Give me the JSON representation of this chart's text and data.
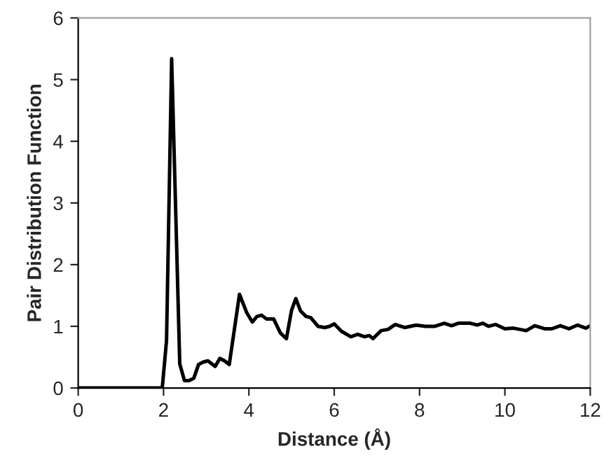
{
  "chart_data": {
    "type": "line",
    "xlabel": "Distance (Å)",
    "ylabel": "Pair Distribution Function",
    "xlim": [
      0,
      12
    ],
    "xticks": [
      0,
      2,
      4,
      6,
      8,
      10,
      12
    ],
    "ylim": [
      0,
      6
    ],
    "yticks": [
      0,
      1,
      2,
      3,
      4,
      5,
      6
    ],
    "grid": false,
    "marker": "none",
    "line_style": "solid",
    "series": [
      {
        "color": "#000000",
        "x": [
          0,
          1.97,
          2.07,
          2.19,
          2.38,
          2.49,
          2.6,
          2.71,
          2.82,
          2.93,
          3.04,
          3.21,
          3.32,
          3.43,
          3.54,
          3.78,
          3.95,
          4.08,
          4.19,
          4.3,
          4.41,
          4.58,
          4.74,
          4.88,
          5.0,
          5.1,
          5.21,
          5.34,
          5.45,
          5.62,
          5.78,
          5.89,
          6.0,
          6.17,
          6.39,
          6.55,
          6.71,
          6.82,
          6.91,
          7.1,
          7.26,
          7.43,
          7.65,
          7.92,
          8.14,
          8.36,
          8.58,
          8.75,
          8.91,
          9.19,
          9.35,
          9.48,
          9.62,
          9.78,
          10.0,
          10.2,
          10.5,
          10.7,
          10.93,
          11.1,
          11.3,
          11.5,
          11.7,
          11.9,
          12.0
        ],
        "values": [
          0,
          0,
          0.77,
          5.34,
          0.39,
          0.12,
          0.12,
          0.16,
          0.38,
          0.42,
          0.44,
          0.35,
          0.48,
          0.44,
          0.38,
          1.52,
          1.22,
          1.07,
          1.16,
          1.18,
          1.12,
          1.12,
          0.89,
          0.8,
          1.26,
          1.45,
          1.25,
          1.16,
          1.14,
          1.0,
          0.98,
          1.0,
          1.04,
          0.92,
          0.83,
          0.87,
          0.83,
          0.85,
          0.8,
          0.93,
          0.95,
          1.03,
          0.98,
          1.02,
          1.0,
          1.0,
          1.05,
          1.01,
          1.05,
          1.05,
          1.02,
          1.05,
          1.0,
          1.03,
          0.96,
          0.97,
          0.93,
          1.01,
          0.96,
          0.96,
          1.01,
          0.96,
          1.02,
          0.97,
          1.01
        ]
      }
    ]
  }
}
